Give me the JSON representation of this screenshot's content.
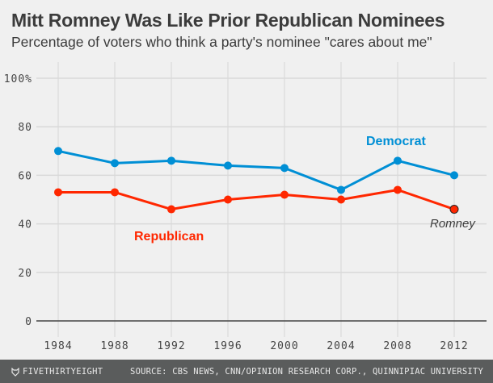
{
  "header": {
    "title": "Mitt Romney Was Like Prior Republican Nominees",
    "subtitle": "Percentage of voters who think a party's nominee \"cares about me\""
  },
  "footer": {
    "brand": "FIVETHIRTYEIGHT",
    "brand_icon": "fox-icon",
    "source": "SOURCE: CBS NEWS, CNN/OPINION RESEARCH CORP., QUINNIPIAC UNIVERSITY"
  },
  "chart_data": {
    "type": "line",
    "title": "Mitt Romney Was Like Prior Republican Nominees",
    "subtitle": "Percentage of voters who think a party's nominee \"cares about me\"",
    "xlabel": "",
    "ylabel": "",
    "x": [
      1984,
      1988,
      1992,
      1996,
      2000,
      2004,
      2008,
      2012
    ],
    "xticks": [
      "1984",
      "1988",
      "1992",
      "1996",
      "2000",
      "2004",
      "2008",
      "2012"
    ],
    "yticks": [
      "0",
      "20",
      "40",
      "60",
      "80",
      "100%"
    ],
    "yticks_values": [
      0,
      20,
      40,
      60,
      80,
      100
    ],
    "ylim": [
      0,
      100
    ],
    "grid": true,
    "series": [
      {
        "name": "Democrat",
        "color": "#008fd5",
        "values": [
          70,
          65,
          66,
          64,
          63,
          54,
          66,
          60
        ]
      },
      {
        "name": "Republican",
        "color": "#ff2700",
        "values": [
          53,
          53,
          46,
          50,
          52,
          50,
          54,
          46
        ]
      }
    ],
    "annotations": [
      {
        "text": "Democrat",
        "series": "Democrat"
      },
      {
        "text": "Republican",
        "series": "Republican"
      },
      {
        "text": "Romney",
        "x": 2012,
        "y": 46,
        "series": "Republican"
      }
    ]
  }
}
